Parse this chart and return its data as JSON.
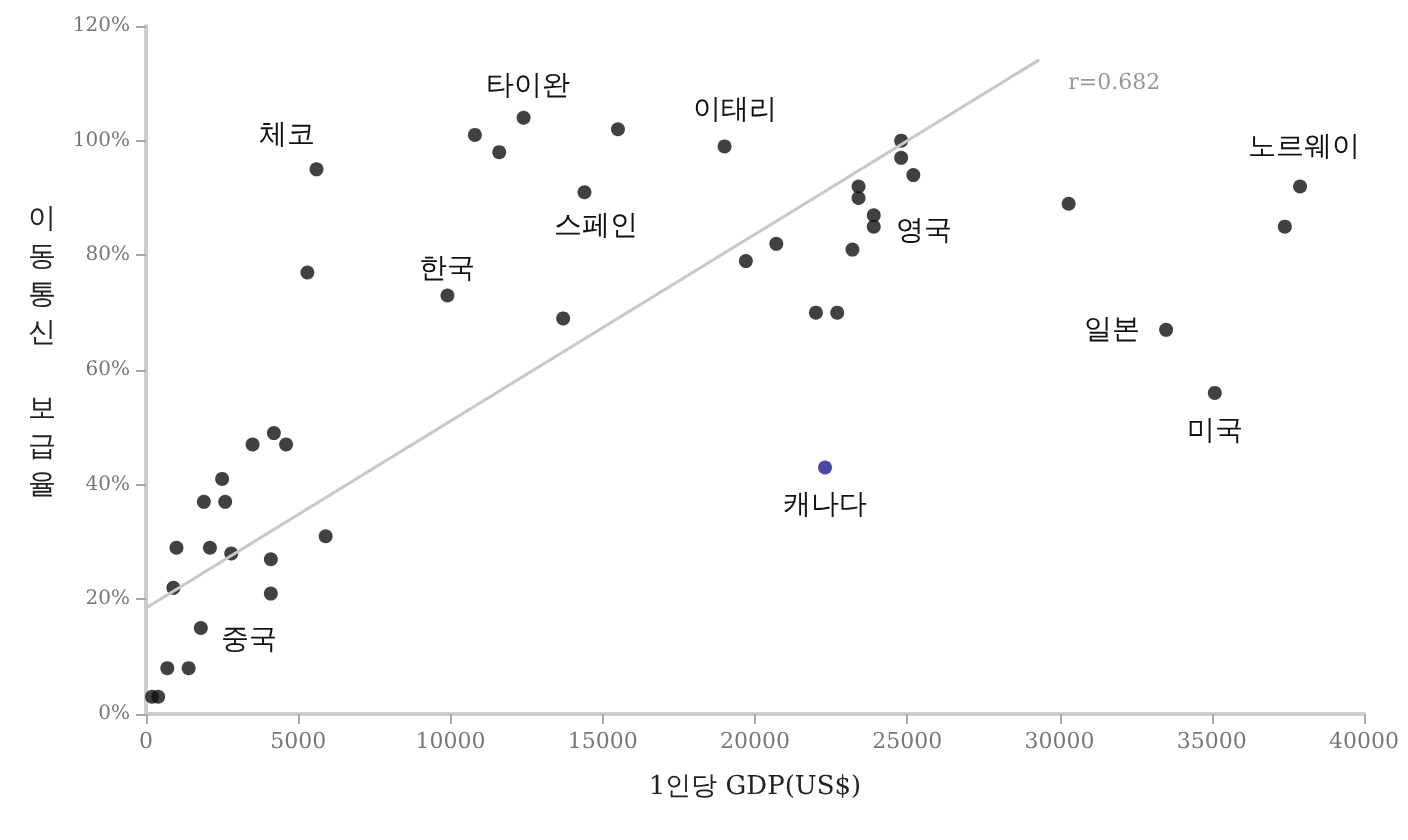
{
  "chart_data": {
    "type": "scatter",
    "xlabel": "1인당 GDP(US$)",
    "ylabel": "이동통신 보급율",
    "xlim": [
      0,
      40000
    ],
    "xticks": [
      0,
      5000,
      10000,
      15000,
      20000,
      25000,
      30000,
      35000,
      40000
    ],
    "ylim": [
      0,
      120
    ],
    "yticks": [
      {
        "value": 0,
        "label": "0%"
      },
      {
        "value": 20,
        "label": "20%"
      },
      {
        "value": 40,
        "label": "40%"
      },
      {
        "value": 60,
        "label": "60%"
      },
      {
        "value": 80,
        "label": "80%"
      },
      {
        "value": 100,
        "label": "100%"
      },
      {
        "value": 120,
        "label": "120%"
      }
    ],
    "grid": false,
    "marker": "circle",
    "series": [
      {
        "color": "#111111",
        "x": [
          200,
          400,
          700,
          1400,
          1800,
          900,
          1000,
          1900,
          2100,
          2500,
          2600,
          2800,
          3500,
          4200,
          4600,
          4100,
          4100,
          5900,
          5300,
          5600,
          9900,
          10800,
          11600,
          12400,
          15500,
          14400,
          13700,
          19000,
          19700,
          20700,
          22000,
          22700,
          23200,
          23400,
          23400,
          23900,
          23900,
          24800,
          24800,
          25200,
          30300,
          33500,
          35100,
          37400,
          37900
        ],
        "values": [
          3,
          3,
          8,
          8,
          15,
          22,
          29,
          37,
          29,
          41,
          37,
          28,
          47,
          49,
          47,
          27,
          21,
          31,
          77,
          95,
          73,
          101,
          98,
          104,
          102,
          91,
          69,
          99,
          79,
          82,
          70,
          70,
          81,
          90,
          92,
          87,
          85,
          100,
          97,
          94,
          89,
          67,
          56,
          85,
          92
        ]
      },
      {
        "color": "#1a1a8c",
        "x": [
          22300
        ],
        "values": [
          43
        ]
      },
      {
        "type": "line",
        "color": "#c8c8c8",
        "marker": "none",
        "x": [
          0,
          29300
        ],
        "values": [
          18.5,
          114
        ]
      }
    ],
    "annotations": [
      {
        "text": "체코",
        "x": 5600,
        "y": 95
      },
      {
        "text": "타이완",
        "x": 12400,
        "y": 104
      },
      {
        "text": "이태리",
        "x": 19000,
        "y": 99
      },
      {
        "text": "노르웨이",
        "x": 37900,
        "y": 92
      },
      {
        "text": "한국",
        "x": 9900,
        "y": 73
      },
      {
        "text": "스페인",
        "x": 14400,
        "y": 91
      },
      {
        "text": "영국",
        "x": 23900,
        "y": 85
      },
      {
        "text": "일본",
        "x": 33500,
        "y": 67
      },
      {
        "text": "미국",
        "x": 35100,
        "y": 56
      },
      {
        "text": "캐나다",
        "x": 22300,
        "y": 43
      },
      {
        "text": "중국",
        "x": 1800,
        "y": 15
      },
      {
        "text": "r=0.682",
        "x": 29300,
        "y": 114
      }
    ]
  }
}
